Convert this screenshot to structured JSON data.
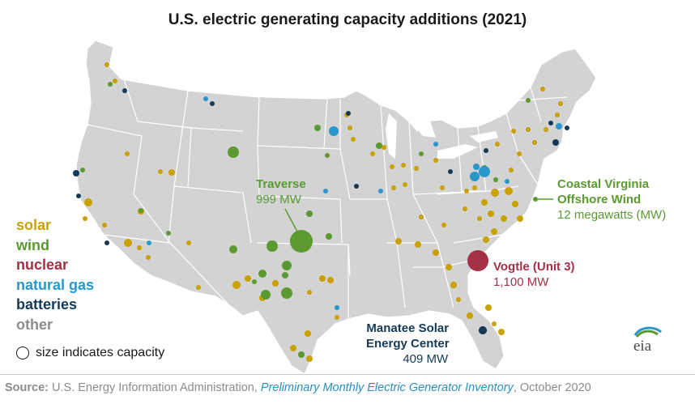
{
  "title": "U.S. electric generating capacity additions (2021)",
  "colors": {
    "solar": "#c9a100",
    "wind": "#5a9a31",
    "nuclear": "#a43045",
    "natural_gas": "#2a96c9",
    "batteries": "#143a57",
    "other": "#8c8c8c",
    "land": "#d3d3d3",
    "state_border": "#ffffff"
  },
  "legend": {
    "items": [
      {
        "label": "solar",
        "color": "#c9a100"
      },
      {
        "label": "wind",
        "color": "#5a9a31"
      },
      {
        "label": "nuclear",
        "color": "#a43045"
      },
      {
        "label": "natural gas",
        "color": "#2a96c9"
      },
      {
        "label": "batteries",
        "color": "#143a57"
      },
      {
        "label": "other",
        "color": "#8c8c8c"
      }
    ],
    "size_note": "size indicates capacity"
  },
  "annotations": {
    "traverse": {
      "name": "Traverse",
      "value": "999 MW"
    },
    "coastal_virginia": {
      "name_line1": "Coastal Virginia",
      "name_line2": "Offshore Wind",
      "value": "12 megawatts (MW)"
    },
    "vogtle": {
      "name": "Vogtle (Unit 3)",
      "value": "1,100 MW"
    },
    "manatee": {
      "name_line1": "Manatee Solar",
      "name_line2": "Energy Center",
      "value": "409 MW"
    }
  },
  "source": {
    "label": "Source:",
    "org": " U.S. Energy Information Administration, ",
    "publication": "Preliminary Monthly Electric Generator Inventory",
    "date": ", October 2020"
  },
  "logo_text": "eia"
}
